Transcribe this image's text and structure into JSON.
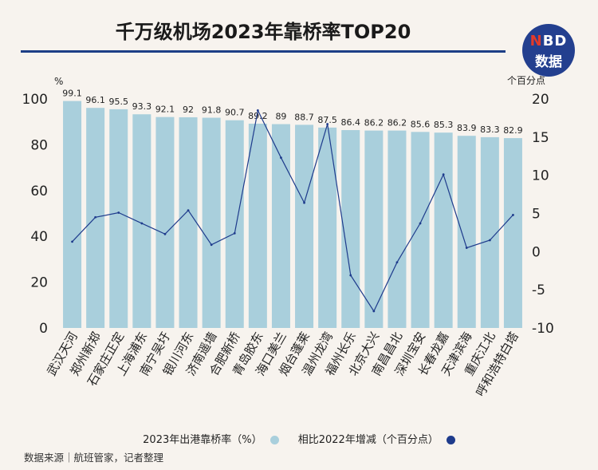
{
  "title": "千万级机场2023年靠桥率TOP20",
  "logo": {
    "top_accent": "N",
    "top_rest": "BD",
    "bottom": "数据"
  },
  "chart_data": {
    "type": "bar+line",
    "categories": [
      "武汉天河",
      "郑州新郑",
      "石家庄正定",
      "上海浦东",
      "南宁吴圩",
      "银川河东",
      "济南遥墙",
      "合肥新桥",
      "青岛胶东",
      "海口美兰",
      "烟台蓬莱",
      "温州龙湾",
      "福州长乐",
      "北京大兴",
      "南昌昌北",
      "深圳宝安",
      "长春龙嘉",
      "天津滨海",
      "重庆江北",
      "呼和浩特白塔"
    ],
    "series": [
      {
        "name": "2023年出港靠桥率（%）",
        "type": "bar",
        "axis": "left",
        "values": [
          99.1,
          96.1,
          95.5,
          93.3,
          92.1,
          92,
          91.8,
          90.7,
          89.2,
          89,
          88.7,
          87.5,
          86.4,
          86.2,
          86.2,
          85.6,
          85.3,
          83.9,
          83.3,
          82.9
        ],
        "labels": [
          "99.1",
          "96.1",
          "95.5",
          "93.3",
          "92.1",
          "92",
          "91.8",
          "90.7",
          "89.2",
          "89",
          "88.7",
          "87.5",
          "86.4",
          "86.2",
          "86.2",
          "85.6",
          "85.3",
          "83.9",
          "83.3",
          "82.9"
        ]
      },
      {
        "name": "相比2022年增减（个百分点）",
        "type": "line",
        "axis": "right",
        "values": [
          1.3,
          4.5,
          5.1,
          3.7,
          2.3,
          5.4,
          0.9,
          2.4,
          18.5,
          12.3,
          6.4,
          16.7,
          -3.1,
          -7.8,
          -1.4,
          3.7,
          10.1,
          0.5,
          1.5,
          4.8
        ]
      }
    ],
    "left_axis": {
      "unit": "%",
      "min": 0,
      "max": 100,
      "ticks": [
        "0",
        "20",
        "40",
        "60",
        "80",
        "100"
      ]
    },
    "right_axis": {
      "unit": "个百分点",
      "min": -10,
      "max": 20,
      "ticks": [
        "-10",
        "-5",
        "0",
        "5",
        "10",
        "15",
        "20"
      ]
    },
    "colors": {
      "bar": "#a9cfdc",
      "line": "#1e3b8c"
    }
  },
  "legend": [
    {
      "label": "2023年出港靠桥率（%）",
      "color": "#a9cfdc"
    },
    {
      "label": "相比2022年增减（个百分点）",
      "color": "#1e3b8c"
    }
  ],
  "source": "数据来源｜航班管家，记者整理"
}
